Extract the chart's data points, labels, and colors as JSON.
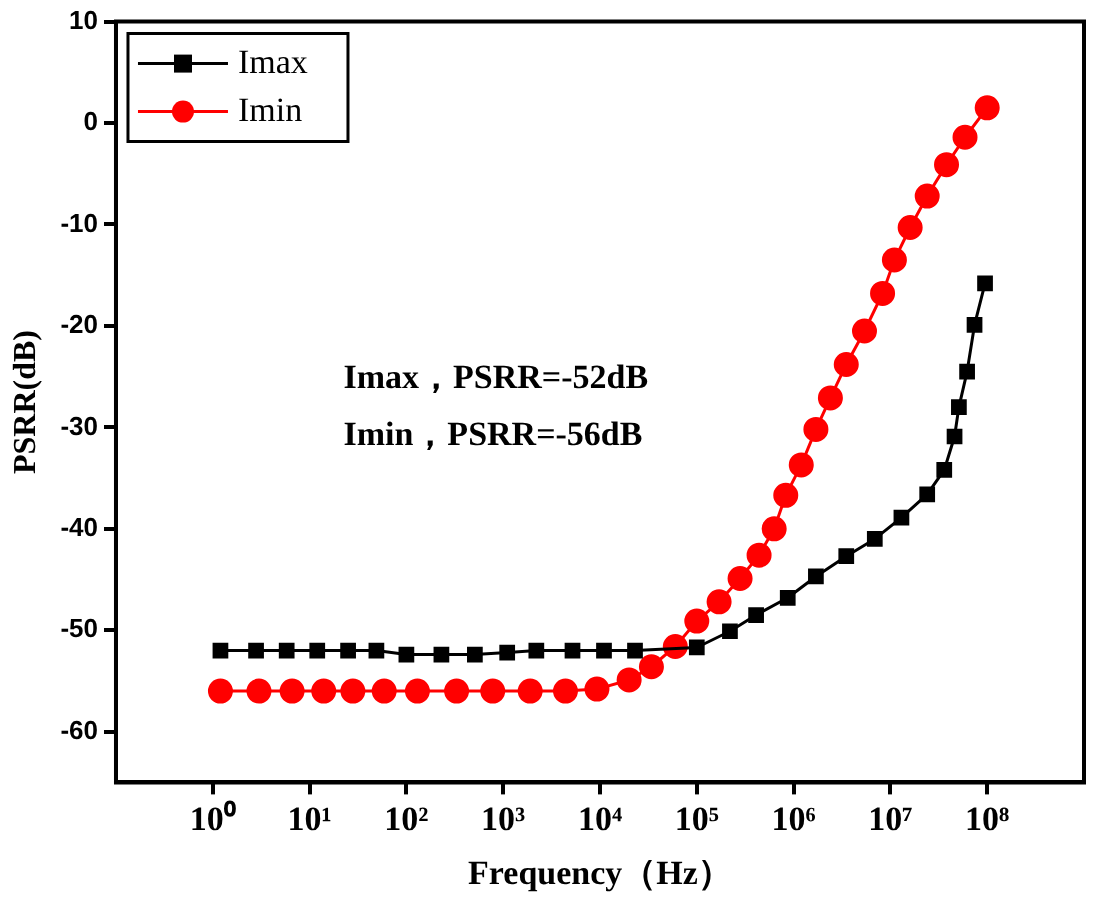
{
  "chart_data": {
    "type": "line",
    "xlabel": "Frequency（Hz）",
    "ylabel": "PSRR(dB)",
    "log": "x",
    "xlim": [
      0.1,
      1000000000
    ],
    "ylim": [
      -65,
      10
    ],
    "xticks": [
      {
        "value": 1,
        "label": "10⁰"
      },
      {
        "value": 10,
        "label": "10¹"
      },
      {
        "value": 100,
        "label": "10²"
      },
      {
        "value": 1000,
        "label": "10³"
      },
      {
        "value": 10000,
        "label": "10⁴"
      },
      {
        "value": 100000,
        "label": "10⁵"
      },
      {
        "value": 1000000,
        "label": "10⁶"
      },
      {
        "value": 10000000,
        "label": "10⁷"
      },
      {
        "value": 100000000,
        "label": "10⁸"
      }
    ],
    "yticks": [
      -60,
      -50,
      -40,
      -30,
      -20,
      -10,
      0,
      10
    ],
    "grid": false,
    "legend": "top left",
    "line_style": "solid",
    "annotations": [
      "Imax，PSRR=-52dB",
      "Imin，PSRR=-56dB"
    ],
    "series": [
      {
        "name": "Imax",
        "color": "#000000",
        "marker": "square",
        "x": [
          1.2,
          2.8,
          5.8,
          12,
          25,
          49,
          100,
          230,
          510,
          1100,
          2200,
          5200,
          11000,
          23000,
          100000,
          220000,
          410000,
          870000,
          1700000,
          3500000,
          6900000,
          13000000,
          24000000,
          36000000,
          46000000,
          51000000,
          62000000,
          74000000,
          95000000
        ],
        "values": [
          -52,
          -52,
          -52,
          -52,
          -52,
          -52,
          -52.4,
          -52.4,
          -52.4,
          -52.2,
          -52,
          -52,
          -52,
          -52,
          -51.7,
          -50.1,
          -48.5,
          -46.8,
          -44.7,
          -42.7,
          -41,
          -38.9,
          -36.6,
          -34.2,
          -30.9,
          -28,
          -24.5,
          -19.9,
          -15.8
        ]
      },
      {
        "name": "Imin",
        "color": "#ff0000",
        "marker": "circle",
        "x": [
          1.2,
          3,
          6.6,
          14,
          28,
          59,
          130,
          330,
          780,
          1900,
          4400,
          9300,
          20000,
          34000,
          60000,
          100000,
          170000,
          280000,
          440000,
          630000,
          830000,
          1200000,
          1700000,
          2400000,
          3500000,
          5400000,
          8300000,
          11000000,
          16000000,
          24000000,
          38000000,
          59000000,
          100000000
        ],
        "values": [
          -56,
          -56,
          -56,
          -56,
          -56,
          -56,
          -56,
          -56,
          -56,
          -56,
          -56,
          -55.8,
          -54.9,
          -53.6,
          -51.6,
          -49.1,
          -47.2,
          -44.9,
          -42.6,
          -40,
          -36.7,
          -33.7,
          -30.2,
          -27.1,
          -23.8,
          -20.5,
          -16.8,
          -13.5,
          -10.3,
          -7.2,
          -4.1,
          -1.4,
          1.5
        ]
      }
    ]
  }
}
